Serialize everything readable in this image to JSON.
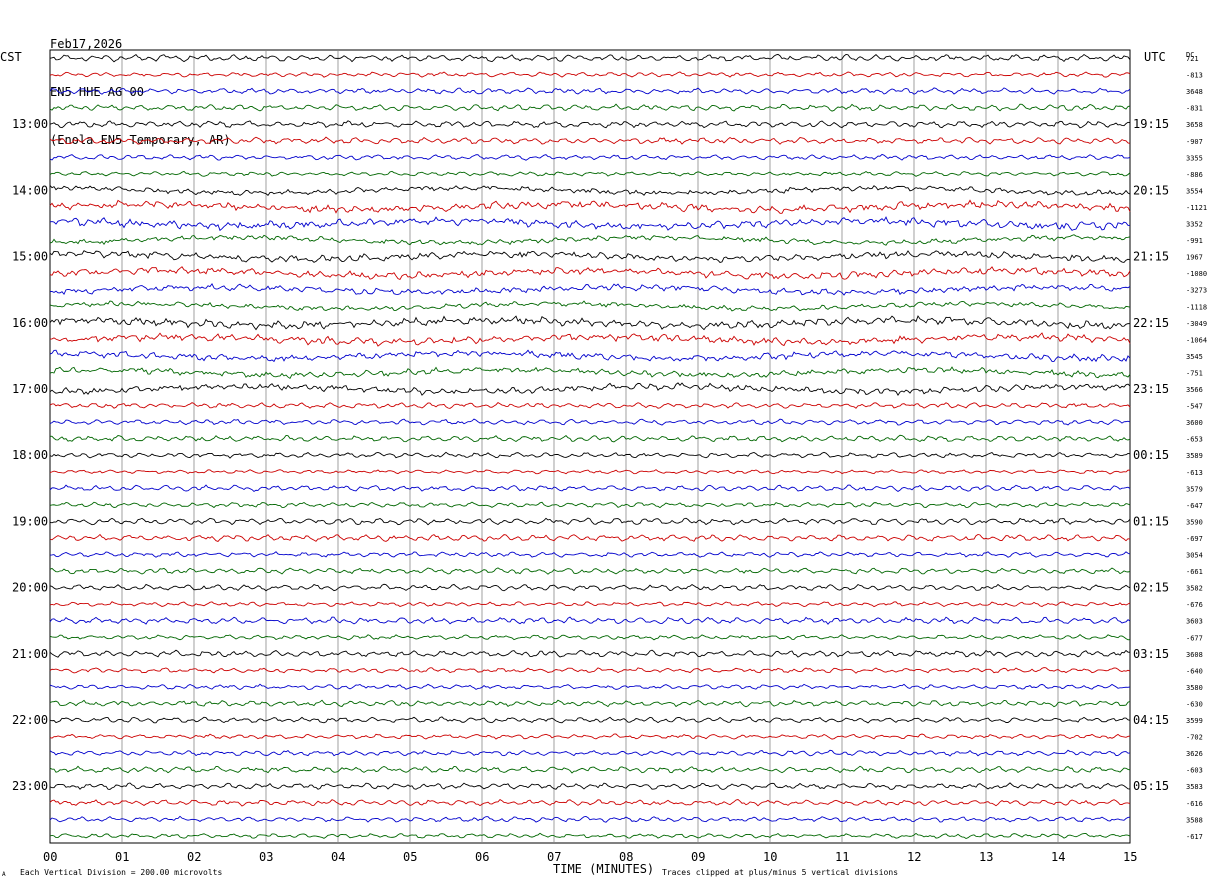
{
  "header": {
    "date": "Feb17,2026",
    "channel": "EN5 HHE AG 00",
    "station": "(Enola EN5 Temporary, AR)"
  },
  "left_tz": "CST",
  "right_tz": "UTC",
  "dc_label": "DC",
  "footer": {
    "scale": "Each Vertical Division =  200.00 microvolts",
    "xlabel": "TIME (MINUTES)",
    "clip": "Traces clipped at plus/minus 5 vertical divisions",
    "mark": "A"
  },
  "colors": [
    "#000000",
    "#cc0000",
    "#0000cc",
    "#006600"
  ],
  "chart_data": {
    "type": "line",
    "xlabel": "TIME (MINUTES)",
    "x_ticks": [
      "00",
      "01",
      "02",
      "03",
      "04",
      "05",
      "06",
      "07",
      "08",
      "09",
      "10",
      "11",
      "12",
      "13",
      "14",
      "15"
    ],
    "xlim": [
      0,
      15
    ],
    "left_hour_labels": [
      "13:00",
      "14:00",
      "15:00",
      "16:00",
      "17:00",
      "18:00",
      "19:00",
      "20:00",
      "21:00",
      "22:00",
      "23:00"
    ],
    "right_hour_labels": [
      "19:15",
      "20:15",
      "21:15",
      "22:15",
      "23:15",
      "00:15",
      "01:15",
      "02:15",
      "03:15",
      "04:15",
      "05:15"
    ],
    "dc_offsets": [
      "721",
      "-813",
      "3648",
      "-831",
      "3658",
      "-907",
      "3355",
      "-886",
      "3554",
      "-1121",
      "3352",
      "-991",
      "1967",
      "-1080",
      "-3273",
      "-1118",
      "-3049",
      "-1064",
      "3545",
      "-751",
      "3566",
      "-547",
      "3600",
      "-653",
      "3589",
      "-613",
      "3579",
      "-647",
      "3590",
      "-697",
      "3054",
      "-661",
      "3582",
      "-676",
      "3603",
      "-677",
      "3608",
      "-640",
      "3580",
      "-630",
      "3599",
      "-702",
      "3626",
      "-603",
      "3583",
      "-616",
      "3588",
      "-617"
    ],
    "trace_count": 48,
    "minutes_per_trace": 15,
    "scale_microvolts_per_division": 200,
    "clip_divisions": 5
  }
}
